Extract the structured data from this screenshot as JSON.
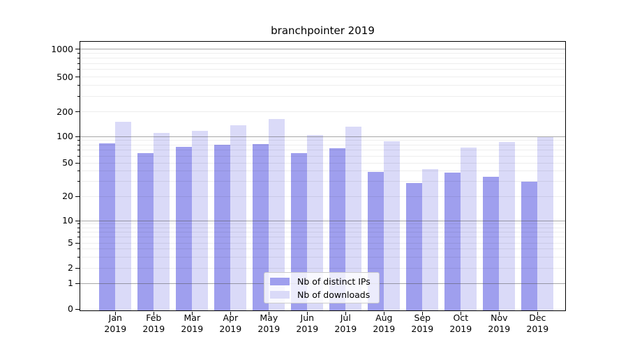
{
  "title": "branchpointer 2019",
  "chart_data": {
    "type": "bar",
    "title": "branchpointer 2019",
    "categories": [
      {
        "month": "Jan",
        "year": "2019"
      },
      {
        "month": "Feb",
        "year": "2019"
      },
      {
        "month": "Mar",
        "year": "2019"
      },
      {
        "month": "Apr",
        "year": "2019"
      },
      {
        "month": "May",
        "year": "2019"
      },
      {
        "month": "Jun",
        "year": "2019"
      },
      {
        "month": "Jul",
        "year": "2019"
      },
      {
        "month": "Aug",
        "year": "2019"
      },
      {
        "month": "Sep",
        "year": "2019"
      },
      {
        "month": "Oct",
        "year": "2019"
      },
      {
        "month": "Nov",
        "year": "2019"
      },
      {
        "month": "Dec",
        "year": "2019"
      }
    ],
    "series": [
      {
        "name": "Nb of distinct IPs",
        "color": "#9f9fee",
        "values": [
          84,
          64,
          76,
          80,
          82,
          65,
          74,
          39,
          29,
          38,
          34,
          30
        ]
      },
      {
        "name": "Nb of downloads",
        "color": "#dadaf8",
        "values": [
          150,
          110,
          116,
          136,
          162,
          105,
          132,
          88,
          42,
          75,
          87,
          98
        ]
      }
    ],
    "y_axis": {
      "scale": "symlog",
      "ticks": [
        1000,
        500,
        200,
        100,
        50,
        20,
        10,
        5,
        2,
        1,
        0
      ]
    },
    "legend": {
      "position": "lower-center"
    },
    "grid": true
  }
}
